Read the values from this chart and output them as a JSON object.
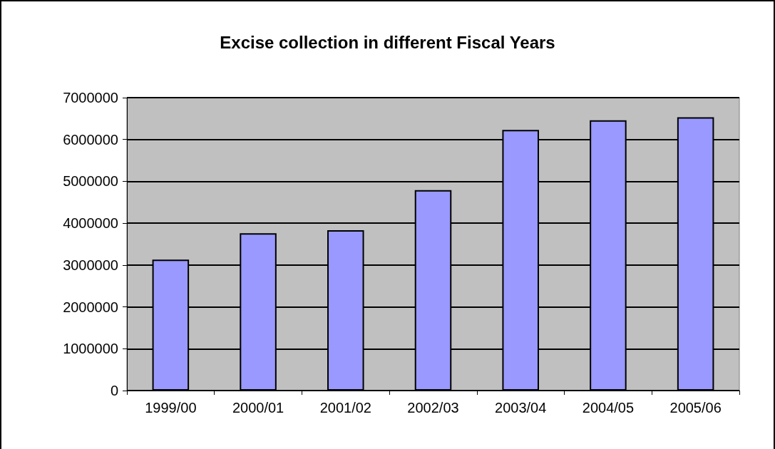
{
  "chart_data": {
    "type": "bar",
    "title": "Excise collection in different Fiscal Years",
    "categories": [
      "1999/00",
      "2000/01",
      "2001/02",
      "2002/03",
      "2003/04",
      "2004/05",
      "2005/06"
    ],
    "values": [
      3130000,
      3760000,
      3830000,
      4790000,
      6230000,
      6460000,
      6530000
    ],
    "color": "#9999ff",
    "ylim": [
      0,
      7000000
    ],
    "yticks": [
      0,
      1000000,
      2000000,
      3000000,
      4000000,
      5000000,
      6000000,
      7000000
    ],
    "grid": "y"
  }
}
